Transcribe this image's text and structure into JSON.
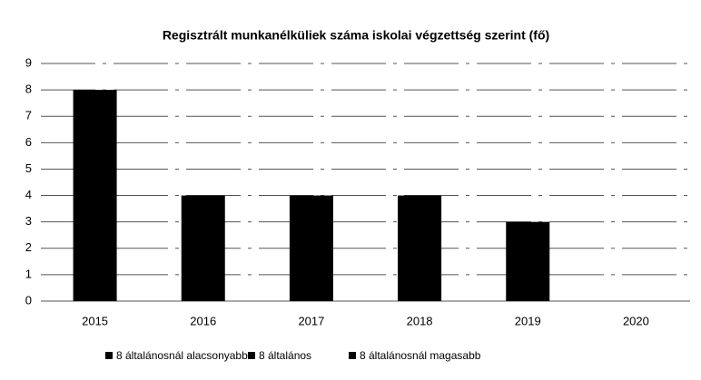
{
  "chart_data": {
    "type": "bar",
    "title": "Regisztrált munkanélküliek száma iskolai végzettség szerint (fő)",
    "categories": [
      "2015",
      "2016",
      "2017",
      "2018",
      "2019",
      "2020"
    ],
    "series": [
      {
        "name": "8 általánosnál alacsonyabb",
        "color": "#000000",
        "values": [
          8,
          4,
          4,
          4,
          3,
          0
        ]
      },
      {
        "name": "8 általános",
        "color": "#000000",
        "values": [
          null,
          null,
          null,
          null,
          null,
          null
        ]
      },
      {
        "name": "8 általánosnál magasabb",
        "color": "#000000",
        "values": [
          null,
          null,
          null,
          null,
          null,
          null
        ]
      }
    ],
    "ylim": [
      0,
      9
    ],
    "yticks": [
      0,
      1,
      2,
      3,
      4,
      5,
      6,
      7,
      8,
      9
    ],
    "grid": true,
    "legend": "bottom"
  }
}
